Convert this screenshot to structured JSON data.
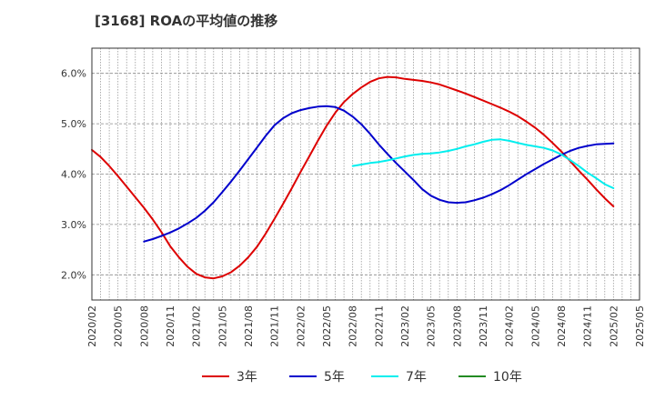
{
  "chart_data": {
    "type": "line",
    "title": "[3168]  ROAの平均値の推移",
    "xlabel": "",
    "ylabel": "",
    "ylim": [
      1.5,
      6.5
    ],
    "y_ticks": [
      "2.0%",
      "3.0%",
      "4.0%",
      "5.0%",
      "6.0%"
    ],
    "y_tick_values": [
      2.0,
      3.0,
      4.0,
      5.0,
      6.0
    ],
    "x_ticks": [
      "2020/02",
      "2020/05",
      "2020/08",
      "2020/11",
      "2021/02",
      "2021/05",
      "2021/08",
      "2021/11",
      "2022/02",
      "2022/05",
      "2022/08",
      "2022/11",
      "2023/02",
      "2023/05",
      "2023/08",
      "2023/11",
      "2024/02",
      "2024/05",
      "2024/08",
      "2024/11",
      "2025/02",
      "2025/05"
    ],
    "grid": true,
    "legend_position": "bottom",
    "series": [
      {
        "name": "3年",
        "color": "#dd0000",
        "x": [
          "2020/02",
          "2020/03",
          "2020/04",
          "2020/05",
          "2020/06",
          "2020/07",
          "2020/08",
          "2020/09",
          "2020/10",
          "2020/11",
          "2020/12",
          "2021/01",
          "2021/02",
          "2021/03",
          "2021/04",
          "2021/05",
          "2021/06",
          "2021/07",
          "2021/08",
          "2021/09",
          "2021/10",
          "2021/11",
          "2021/12",
          "2022/01",
          "2022/02",
          "2022/03",
          "2022/04",
          "2022/05",
          "2022/06",
          "2022/07",
          "2022/08",
          "2022/09",
          "2022/10",
          "2022/11",
          "2022/12",
          "2023/01",
          "2023/02",
          "2023/03",
          "2023/04",
          "2023/05",
          "2023/06",
          "2023/07",
          "2023/08",
          "2023/09",
          "2023/10",
          "2023/11",
          "2023/12",
          "2024/01",
          "2024/02",
          "2024/03",
          "2024/04",
          "2024/05",
          "2024/06",
          "2024/07",
          "2024/08",
          "2024/09",
          "2024/10",
          "2024/11",
          "2024/12",
          "2025/01",
          "2025/02"
        ],
        "values": [
          4.48,
          4.34,
          4.16,
          3.96,
          3.75,
          3.54,
          3.33,
          3.1,
          2.85,
          2.57,
          2.35,
          2.16,
          2.02,
          1.95,
          1.93,
          1.97,
          2.05,
          2.18,
          2.35,
          2.56,
          2.82,
          3.11,
          3.41,
          3.72,
          4.04,
          4.35,
          4.66,
          4.96,
          5.22,
          5.43,
          5.59,
          5.72,
          5.83,
          5.9,
          5.93,
          5.92,
          5.89,
          5.87,
          5.85,
          5.82,
          5.78,
          5.72,
          5.66,
          5.6,
          5.53,
          5.46,
          5.39,
          5.32,
          5.24,
          5.15,
          5.04,
          4.92,
          4.78,
          4.62,
          4.45,
          4.26,
          4.07,
          3.89,
          3.7,
          3.52,
          3.36
        ]
      },
      {
        "name": "5年",
        "color": "#0000cc",
        "x": [
          "2020/08",
          "2020/09",
          "2020/10",
          "2020/11",
          "2020/12",
          "2021/01",
          "2021/02",
          "2021/03",
          "2021/04",
          "2021/05",
          "2021/06",
          "2021/07",
          "2021/08",
          "2021/09",
          "2021/10",
          "2021/11",
          "2021/12",
          "2022/01",
          "2022/02",
          "2022/03",
          "2022/04",
          "2022/05",
          "2022/06",
          "2022/07",
          "2022/08",
          "2022/09",
          "2022/10",
          "2022/11",
          "2022/12",
          "2023/01",
          "2023/02",
          "2023/03",
          "2023/04",
          "2023/05",
          "2023/06",
          "2023/07",
          "2023/08",
          "2023/09",
          "2023/10",
          "2023/11",
          "2023/12",
          "2024/01",
          "2024/02",
          "2024/03",
          "2024/04",
          "2024/05",
          "2024/06",
          "2024/07",
          "2024/08",
          "2024/09",
          "2024/10",
          "2024/11",
          "2024/12",
          "2025/01",
          "2025/02"
        ],
        "values": [
          2.66,
          2.71,
          2.77,
          2.84,
          2.92,
          3.02,
          3.13,
          3.27,
          3.44,
          3.64,
          3.85,
          4.07,
          4.3,
          4.53,
          4.76,
          4.97,
          5.11,
          5.21,
          5.27,
          5.31,
          5.34,
          5.35,
          5.33,
          5.26,
          5.14,
          4.99,
          4.8,
          4.59,
          4.4,
          4.22,
          4.05,
          3.88,
          3.7,
          3.57,
          3.49,
          3.44,
          3.43,
          3.44,
          3.48,
          3.53,
          3.6,
          3.68,
          3.78,
          3.89,
          4.0,
          4.1,
          4.2,
          4.29,
          4.38,
          4.46,
          4.52,
          4.56,
          4.59,
          4.6,
          4.61
        ]
      },
      {
        "name": "7年",
        "color": "#00eeee",
        "x": [
          "2022/08",
          "2022/09",
          "2022/10",
          "2022/11",
          "2022/12",
          "2023/01",
          "2023/02",
          "2023/03",
          "2023/04",
          "2023/05",
          "2023/06",
          "2023/07",
          "2023/08",
          "2023/09",
          "2023/10",
          "2023/11",
          "2023/12",
          "2024/01",
          "2024/02",
          "2024/03",
          "2024/04",
          "2024/05",
          "2024/06",
          "2024/07",
          "2024/08",
          "2024/09",
          "2024/10",
          "2024/11",
          "2024/12",
          "2025/01",
          "2025/02"
        ],
        "values": [
          4.16,
          4.19,
          4.22,
          4.24,
          4.27,
          4.31,
          4.35,
          4.38,
          4.4,
          4.41,
          4.43,
          4.46,
          4.5,
          4.55,
          4.59,
          4.64,
          4.68,
          4.69,
          4.66,
          4.62,
          4.58,
          4.55,
          4.52,
          4.47,
          4.39,
          4.28,
          4.16,
          4.03,
          3.92,
          3.8,
          3.72
        ]
      },
      {
        "name": "10年",
        "color": "#228b22",
        "x": [],
        "values": []
      }
    ]
  }
}
